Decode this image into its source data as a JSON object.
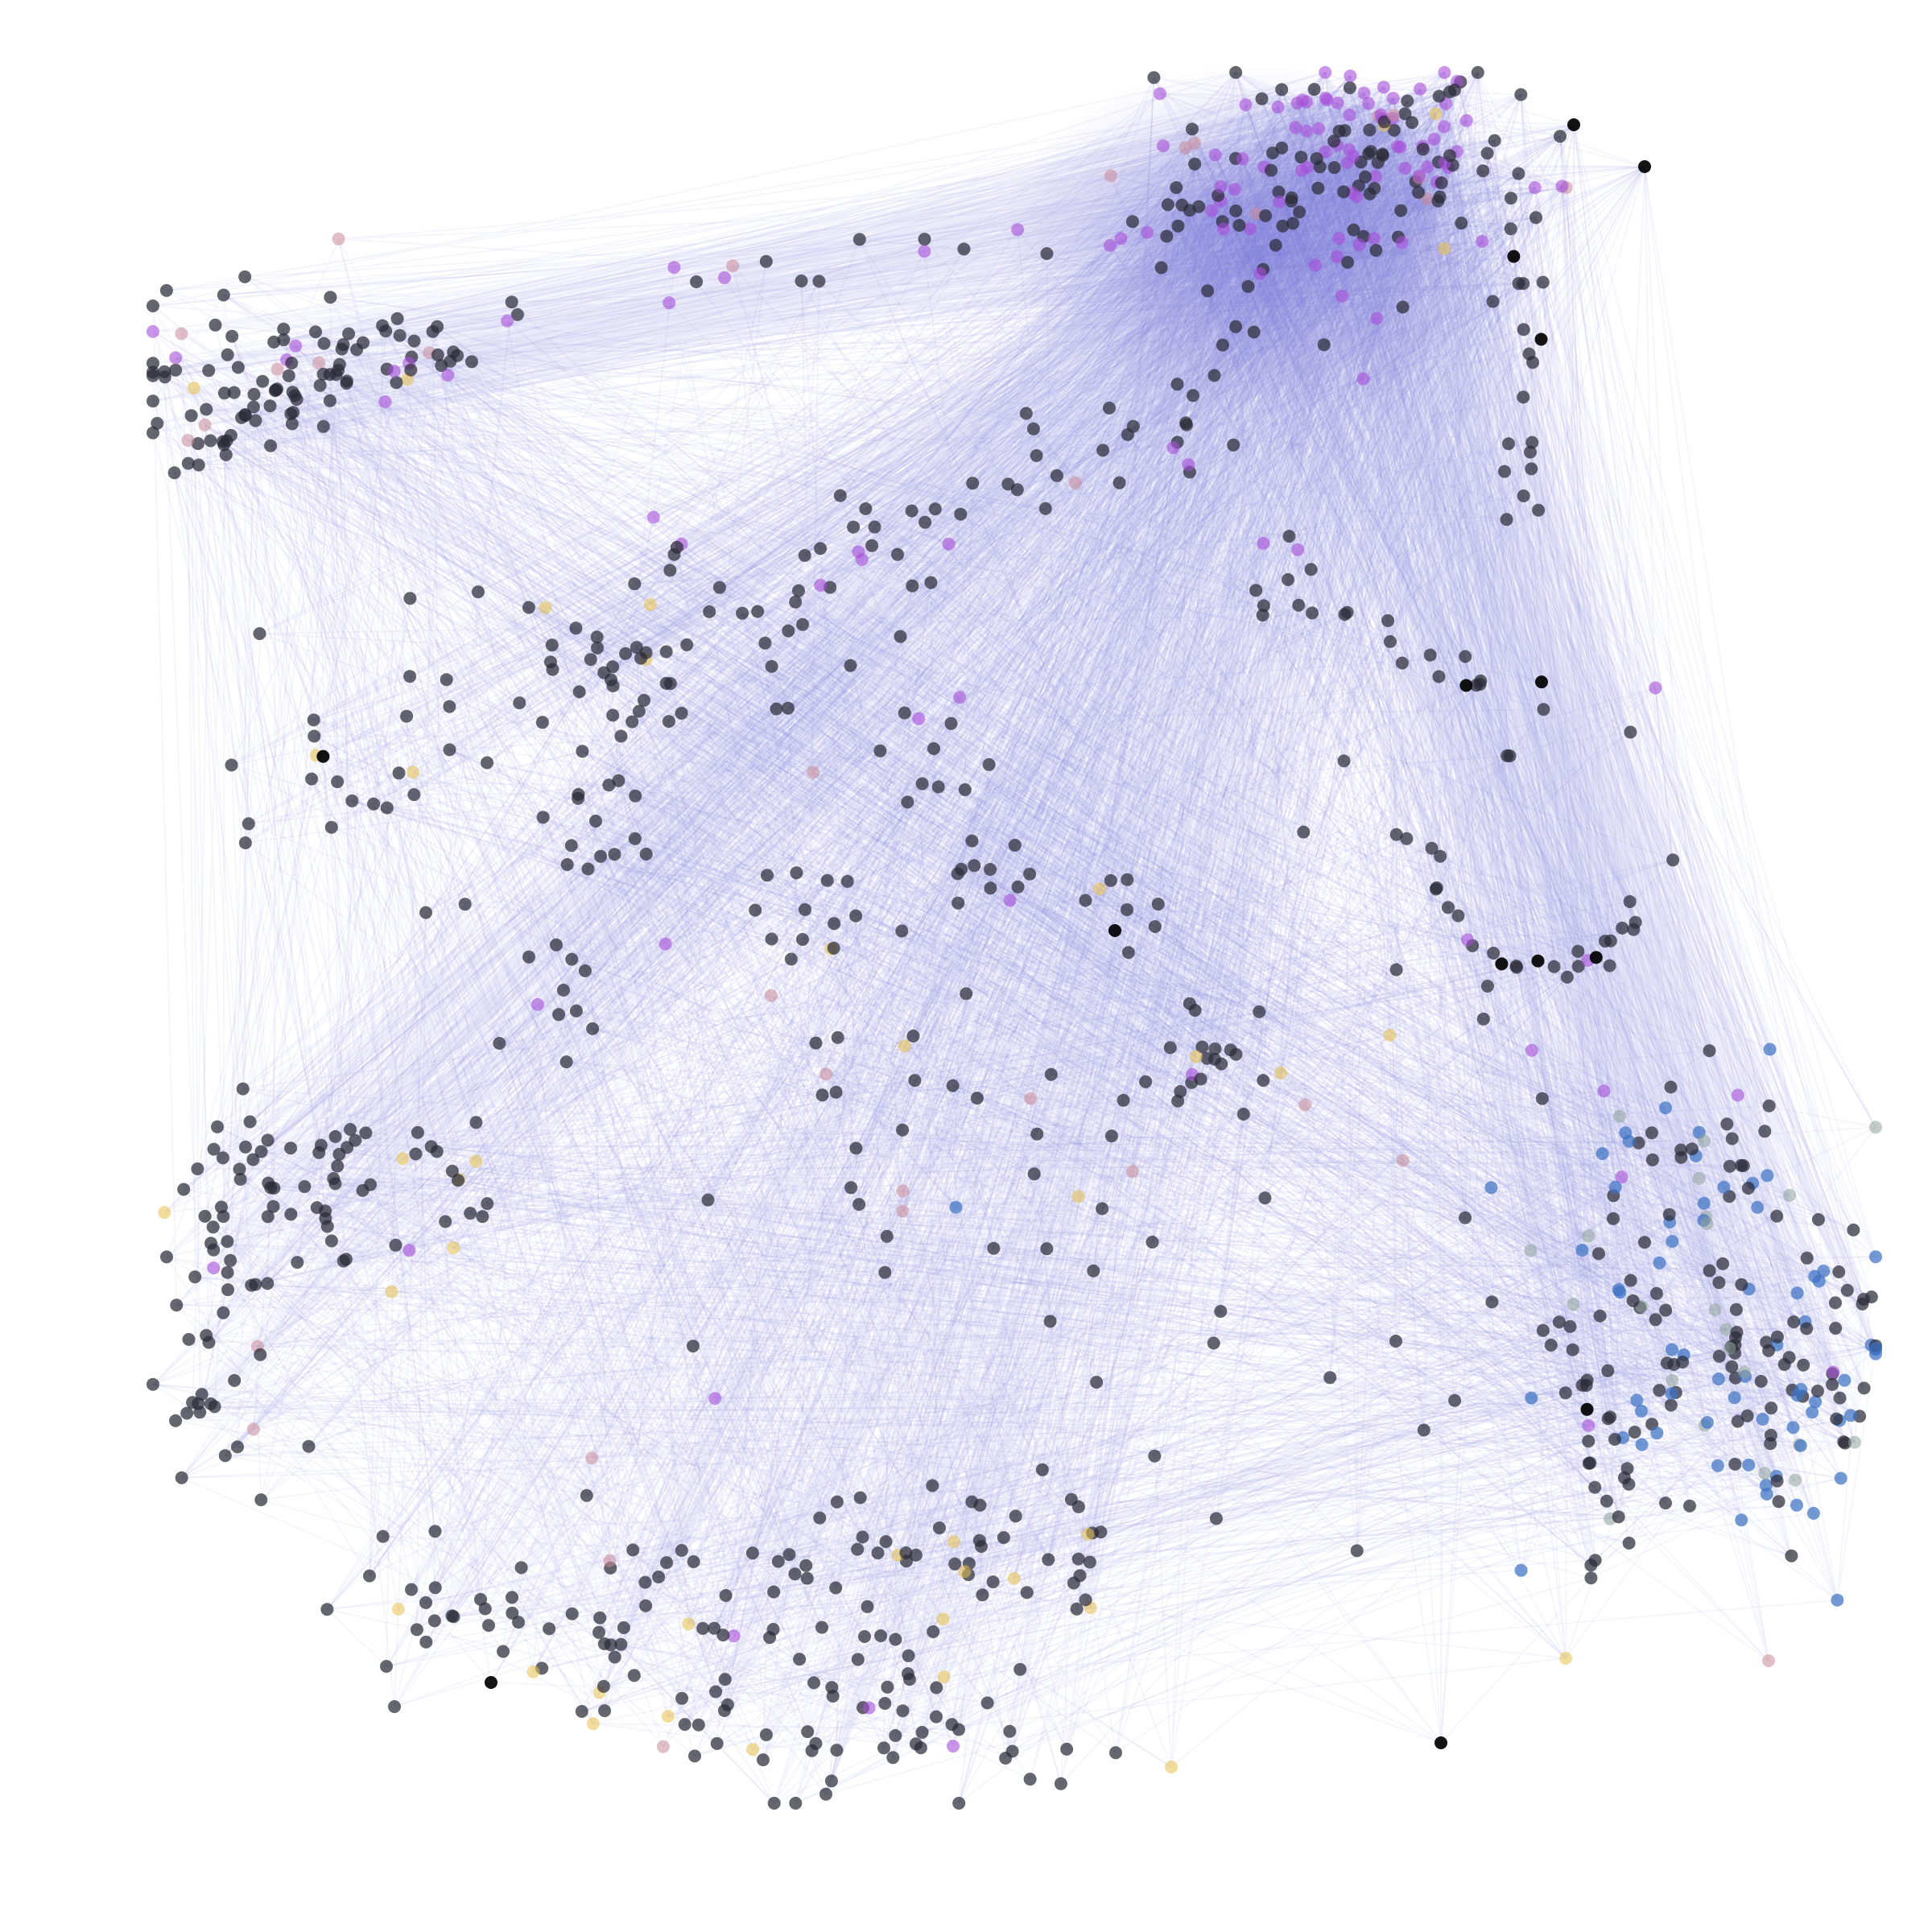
{
  "graph": {
    "node_colors": {
      "dark": "#2b2b38",
      "black": "#000000",
      "purple": "#a64fd9",
      "gold": "#e8c14a",
      "blue": "#3f73c4",
      "gray": "#8fa39b",
      "pink": "#c98a98"
    },
    "edge_color": "#6a66d6",
    "background": "#ffffff"
  }
}
